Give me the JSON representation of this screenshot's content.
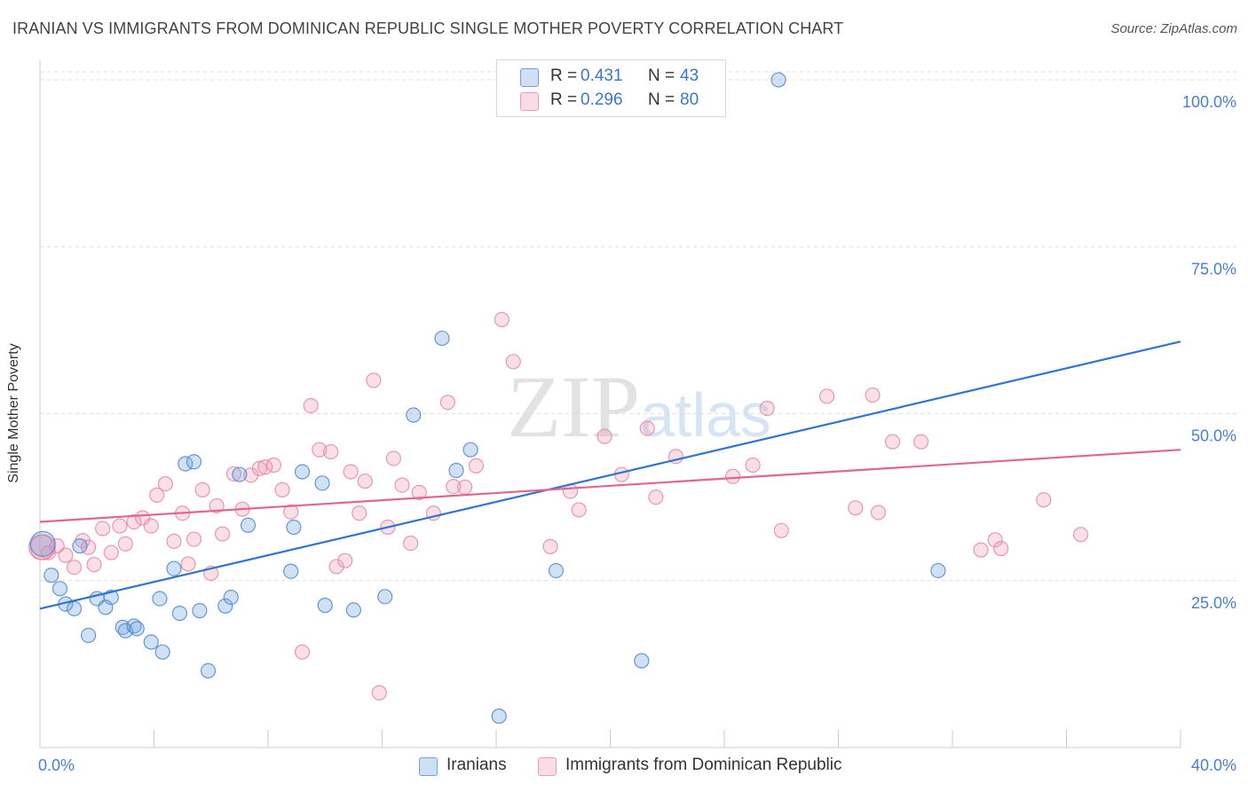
{
  "title": "IRANIAN VS IMMIGRANTS FROM DOMINICAN REPUBLIC SINGLE MOTHER POVERTY CORRELATION CHART",
  "source": "Source: ZipAtlas.com",
  "watermark": "ZIPatlas",
  "legend": {
    "items": [
      {
        "r_label": "R =",
        "r_value": "0.431",
        "n_label": "N =",
        "n_value": "43",
        "color": "#6fa1de"
      },
      {
        "r_label": "R =",
        "r_value": "0.296",
        "n_label": "N =",
        "n_value": "80",
        "color": "#ee9ab5"
      }
    ]
  },
  "bottom_legend": {
    "items": [
      {
        "label": "Iranians",
        "color": "#6fa1de"
      },
      {
        "label": "Immigrants from Dominican Republic",
        "color": "#ee9ab5"
      }
    ]
  },
  "chart_data": {
    "type": "scatter",
    "title": "IRANIAN VS IMMIGRANTS FROM DOMINICAN REPUBLIC SINGLE MOTHER POVERTY CORRELATION CHART",
    "xlabel": "",
    "ylabel": "Single Mother Poverty",
    "xlim": [
      0,
      40
    ],
    "ylim": [
      0,
      102
    ],
    "x_tick_labels": [
      {
        "value": 0,
        "label": "0.0%"
      },
      {
        "value": 40,
        "label": "40.0%"
      }
    ],
    "y_tick_labels": [
      {
        "value": 25,
        "label": "25.0%"
      },
      {
        "value": 50,
        "label": "50.0%"
      },
      {
        "value": 75,
        "label": "75.0%"
      },
      {
        "value": 100,
        "label": "100.0%"
      }
    ],
    "grid": true,
    "legend_position": "top-center",
    "series": [
      {
        "name": "Iranians",
        "color": "#6fa1de",
        "stroke": "#4d86d0",
        "line_color": "#2f74d0",
        "trend": {
          "x": [
            0,
            40
          ],
          "y": [
            20.8,
            60.8
          ]
        },
        "points": [
          [
            0.1,
            30.5
          ],
          [
            0.4,
            25.8
          ],
          [
            0.7,
            23.8
          ],
          [
            0.9,
            21.5
          ],
          [
            1.2,
            20.8
          ],
          [
            1.4,
            30.2
          ],
          [
            1.7,
            16.8
          ],
          [
            2.0,
            22.3
          ],
          [
            2.3,
            21.0
          ],
          [
            2.5,
            22.5
          ],
          [
            2.9,
            18.0
          ],
          [
            3.0,
            17.5
          ],
          [
            3.3,
            18.2
          ],
          [
            3.4,
            17.8
          ],
          [
            3.9,
            15.8
          ],
          [
            4.2,
            22.3
          ],
          [
            4.3,
            14.3
          ],
          [
            4.7,
            26.8
          ],
          [
            4.9,
            20.1
          ],
          [
            5.1,
            42.5
          ],
          [
            5.4,
            42.8
          ],
          [
            5.6,
            20.5
          ],
          [
            5.9,
            11.5
          ],
          [
            6.5,
            21.2
          ],
          [
            6.7,
            22.5
          ],
          [
            7.0,
            40.9
          ],
          [
            7.3,
            33.3
          ],
          [
            8.8,
            26.4
          ],
          [
            8.9,
            33.0
          ],
          [
            9.2,
            41.3
          ],
          [
            9.9,
            39.6
          ],
          [
            10.0,
            21.3
          ],
          [
            11.0,
            20.6
          ],
          [
            12.1,
            22.6
          ],
          [
            13.1,
            49.8
          ],
          [
            14.1,
            61.3
          ],
          [
            14.6,
            41.5
          ],
          [
            15.1,
            44.6
          ],
          [
            16.1,
            4.7
          ],
          [
            18.1,
            26.5
          ],
          [
            21.1,
            13.0
          ],
          [
            25.9,
            100.0
          ],
          [
            31.5,
            26.5
          ]
        ]
      },
      {
        "name": "Immigrants from Dominican Republic",
        "color": "#ee9ab5",
        "stroke": "#e587a6",
        "line_color": "#e0668f",
        "trend": {
          "x": [
            0,
            40
          ],
          "y": [
            33.8,
            44.6
          ]
        },
        "points": [
          [
            0.1,
            30.0
          ],
          [
            0.3,
            29.2
          ],
          [
            0.6,
            30.2
          ],
          [
            0.9,
            28.8
          ],
          [
            1.2,
            27.0
          ],
          [
            1.5,
            31.0
          ],
          [
            1.7,
            30.0
          ],
          [
            1.9,
            27.4
          ],
          [
            2.2,
            32.8
          ],
          [
            2.5,
            29.2
          ],
          [
            2.8,
            33.2
          ],
          [
            3.0,
            30.5
          ],
          [
            3.3,
            33.8
          ],
          [
            3.6,
            34.4
          ],
          [
            3.9,
            33.2
          ],
          [
            4.1,
            37.8
          ],
          [
            4.4,
            39.5
          ],
          [
            4.7,
            30.9
          ],
          [
            5.0,
            35.1
          ],
          [
            5.2,
            27.5
          ],
          [
            5.4,
            31.2
          ],
          [
            5.7,
            38.6
          ],
          [
            6.0,
            26.1
          ],
          [
            6.2,
            36.2
          ],
          [
            6.4,
            32.0
          ],
          [
            6.8,
            41.0
          ],
          [
            7.1,
            35.7
          ],
          [
            7.4,
            40.8
          ],
          [
            7.7,
            41.8
          ],
          [
            7.9,
            42.0
          ],
          [
            8.2,
            42.3
          ],
          [
            8.5,
            38.6
          ],
          [
            8.8,
            35.3
          ],
          [
            9.2,
            14.3
          ],
          [
            9.5,
            51.2
          ],
          [
            9.8,
            44.6
          ],
          [
            10.2,
            44.3
          ],
          [
            10.4,
            27.1
          ],
          [
            10.7,
            28.0
          ],
          [
            10.9,
            41.3
          ],
          [
            11.2,
            35.1
          ],
          [
            11.4,
            39.9
          ],
          [
            11.7,
            55.0
          ],
          [
            11.9,
            8.2
          ],
          [
            12.2,
            33.0
          ],
          [
            12.4,
            43.3
          ],
          [
            12.7,
            39.3
          ],
          [
            13.0,
            30.6
          ],
          [
            13.3,
            38.2
          ],
          [
            13.8,
            35.1
          ],
          [
            14.3,
            51.7
          ],
          [
            14.5,
            39.1
          ],
          [
            14.9,
            39.0
          ],
          [
            15.3,
            42.2
          ],
          [
            16.2,
            64.1
          ],
          [
            16.6,
            57.8
          ],
          [
            17.9,
            30.1
          ],
          [
            18.6,
            38.4
          ],
          [
            18.9,
            35.6
          ],
          [
            19.8,
            46.6
          ],
          [
            20.4,
            40.9
          ],
          [
            21.3,
            47.8
          ],
          [
            21.6,
            37.5
          ],
          [
            22.3,
            43.6
          ],
          [
            24.3,
            40.6
          ],
          [
            25.0,
            42.3
          ],
          [
            25.5,
            50.8
          ],
          [
            26.0,
            32.5
          ],
          [
            27.6,
            52.6
          ],
          [
            28.6,
            35.9
          ],
          [
            29.2,
            52.8
          ],
          [
            29.4,
            35.2
          ],
          [
            29.9,
            45.8
          ],
          [
            30.9,
            45.8
          ],
          [
            33.0,
            29.6
          ],
          [
            33.5,
            31.1
          ],
          [
            33.7,
            29.8
          ],
          [
            35.2,
            37.1
          ],
          [
            36.5,
            31.9
          ],
          [
            0.05,
            30.0
          ]
        ]
      }
    ]
  }
}
